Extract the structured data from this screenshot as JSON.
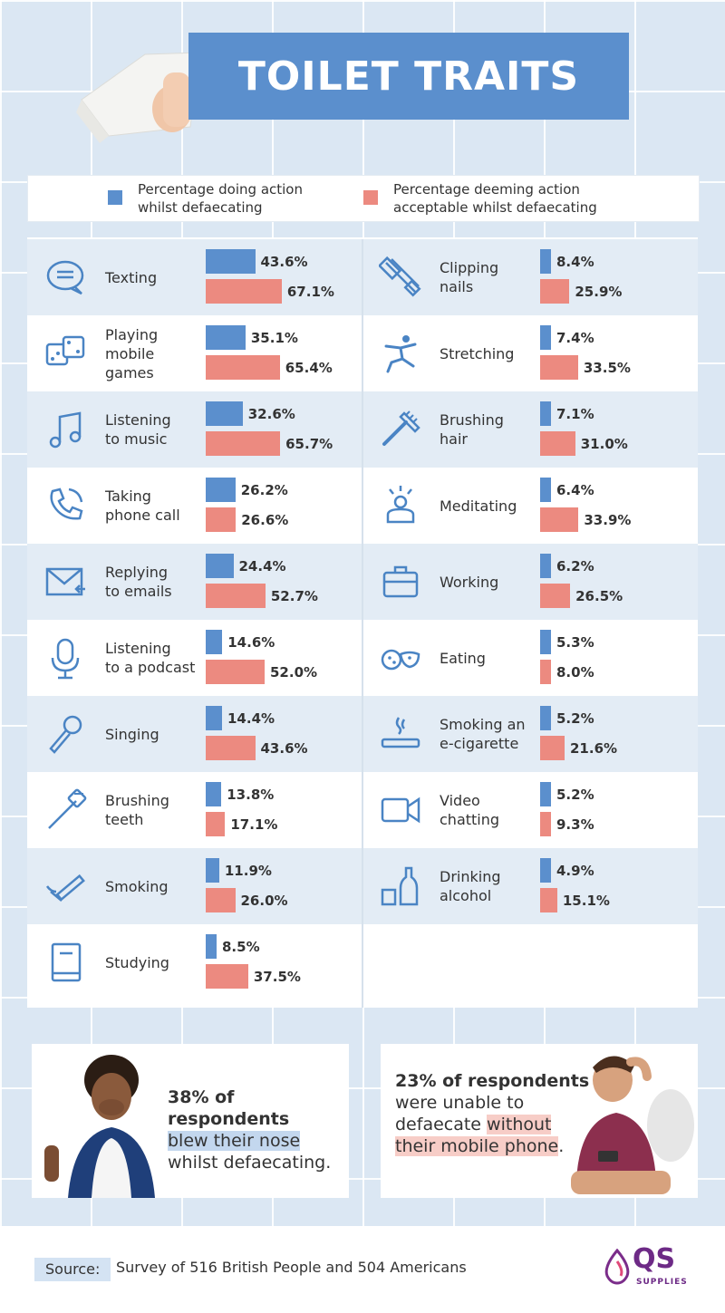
{
  "title": "TOILET TRAITS",
  "chart_data": {
    "type": "bar",
    "orientation": "horizontal",
    "series": [
      {
        "name": "Percentage doing action whilst defaecating",
        "color": "#5b8fcd"
      },
      {
        "name": "Percentage deeming action acceptable whilst defaecating",
        "color": "#ec8a80"
      }
    ],
    "legend": {
      "doing": [
        "Percentage doing action",
        "whilst defaecating"
      ],
      "acceptable": [
        "Percentage deeming action",
        "acceptable whilst defaecating"
      ]
    },
    "columns": [
      [
        {
          "icon": "chat-bubble-icon",
          "label": [
            "Texting"
          ],
          "doing": 43.6,
          "doing_text": "43.6%",
          "acceptable": 67.1,
          "acceptable_text": "67.1%"
        },
        {
          "icon": "dice-icon",
          "label": [
            "Playing",
            "mobile",
            "games"
          ],
          "doing": 35.1,
          "doing_text": "35.1%",
          "acceptable": 65.4,
          "acceptable_text": "65.4%"
        },
        {
          "icon": "music-note-icon",
          "label": [
            "Listening",
            "to music"
          ],
          "doing": 32.6,
          "doing_text": "32.6%",
          "acceptable": 65.7,
          "acceptable_text": "65.7%"
        },
        {
          "icon": "phone-icon",
          "label": [
            "Taking",
            "phone call"
          ],
          "doing": 26.2,
          "doing_text": "26.2%",
          "acceptable": 26.6,
          "acceptable_text": "26.6%"
        },
        {
          "icon": "envelope-icon",
          "label": [
            "Replying",
            "to emails"
          ],
          "doing": 24.4,
          "doing_text": "24.4%",
          "acceptable": 52.7,
          "acceptable_text": "52.7%"
        },
        {
          "icon": "microphone-icon",
          "label": [
            "Listening",
            "to a podcast"
          ],
          "doing": 14.6,
          "doing_text": "14.6%",
          "acceptable": 52.0,
          "acceptable_text": "52.0%"
        },
        {
          "icon": "handheld-mic-icon",
          "label": [
            "Singing"
          ],
          "doing": 14.4,
          "doing_text": "14.4%",
          "acceptable": 43.6,
          "acceptable_text": "43.6%"
        },
        {
          "icon": "toothbrush-icon",
          "label": [
            "Brushing",
            "teeth"
          ],
          "doing": 13.8,
          "doing_text": "13.8%",
          "acceptable": 17.1,
          "acceptable_text": "17.1%"
        },
        {
          "icon": "cigarette-icon",
          "label": [
            "Smoking"
          ],
          "doing": 11.9,
          "doing_text": "11.9%",
          "acceptable": 26.0,
          "acceptable_text": "26.0%"
        },
        {
          "icon": "book-icon",
          "label": [
            "Studying"
          ],
          "doing": 8.5,
          "doing_text": "8.5%",
          "acceptable": 37.5,
          "acceptable_text": "37.5%"
        }
      ],
      [
        {
          "icon": "nail-clipper-icon",
          "label": [
            "Clipping",
            "nails"
          ],
          "doing": 8.4,
          "doing_text": "8.4%",
          "acceptable": 25.9,
          "acceptable_text": "25.9%"
        },
        {
          "icon": "stretching-person-icon",
          "label": [
            "Stretching"
          ],
          "doing": 7.4,
          "doing_text": "7.4%",
          "acceptable": 33.5,
          "acceptable_text": "33.5%"
        },
        {
          "icon": "comb-icon",
          "label": [
            "Brushing",
            "hair"
          ],
          "doing": 7.1,
          "doing_text": "7.1%",
          "acceptable": 31.0,
          "acceptable_text": "31.0%"
        },
        {
          "icon": "meditating-person-icon",
          "label": [
            "Meditating"
          ],
          "doing": 6.4,
          "doing_text": "6.4%",
          "acceptable": 33.9,
          "acceptable_text": "33.9%"
        },
        {
          "icon": "briefcase-icon",
          "label": [
            "Working"
          ],
          "doing": 6.2,
          "doing_text": "6.2%",
          "acceptable": 26.5,
          "acceptable_text": "26.5%"
        },
        {
          "icon": "cookies-icon",
          "label": [
            "Eating"
          ],
          "doing": 5.3,
          "doing_text": "5.3%",
          "acceptable": 8.0,
          "acceptable_text": "8.0%"
        },
        {
          "icon": "e-cigarette-icon",
          "label": [
            "Smoking an",
            "e-cigarette"
          ],
          "doing": 5.2,
          "doing_text": "5.2%",
          "acceptable": 21.6,
          "acceptable_text": "21.6%"
        },
        {
          "icon": "video-camera-icon",
          "label": [
            "Video",
            "chatting"
          ],
          "doing": 5.2,
          "doing_text": "5.2%",
          "acceptable": 9.3,
          "acceptable_text": "9.3%"
        },
        {
          "icon": "bottle-glass-icon",
          "label": [
            "Drinking",
            "alcohol"
          ],
          "doing": 4.9,
          "doing_text": "4.9%",
          "acceptable": 15.1,
          "acceptable_text": "15.1%"
        }
      ]
    ]
  },
  "callouts": {
    "left": {
      "bold": "38% of respondents",
      "highlight": "blew their nose",
      "rest": "whilst defaecating."
    },
    "right": {
      "bold": "23% of respondents",
      "line2": "were unable to",
      "line3_plain": "defaecate ",
      "line3_hl": "without",
      "line4_hl": "their mobile phone",
      "line4_end": "."
    }
  },
  "footer": {
    "source_label": "Source:",
    "source_text": "Survey of 516 British People and 504 Americans",
    "logo_text": "QS",
    "logo_sub": "SUPPLIES"
  },
  "colors": {
    "blue": "#5b8fcd",
    "red": "#ec8a80",
    "band": "#e3ecf5",
    "icon": "#4a84c4"
  }
}
